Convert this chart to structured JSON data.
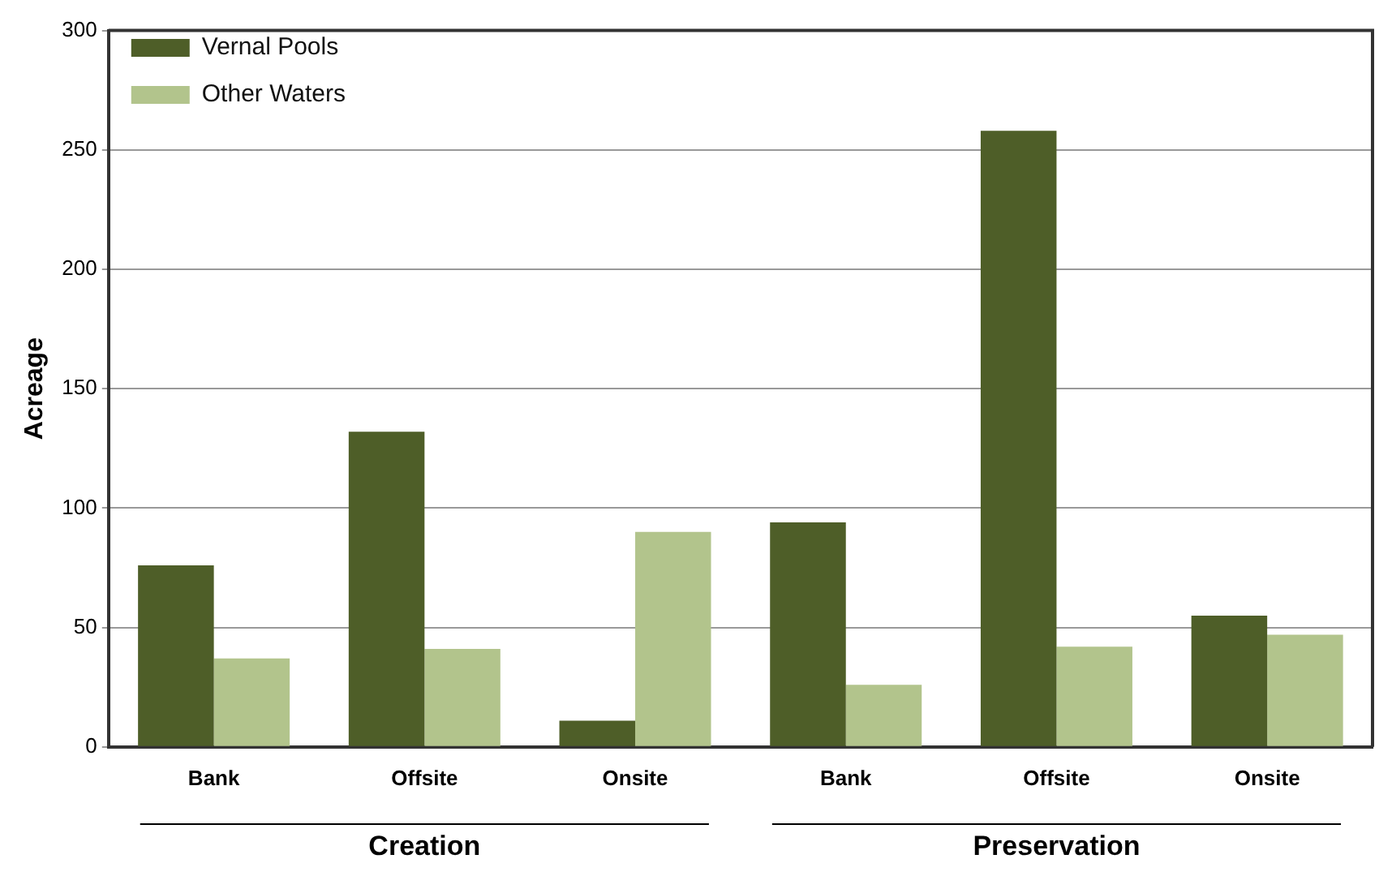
{
  "chart_data": {
    "type": "bar",
    "ylabel": "Acreage",
    "categories": [
      "Bank",
      "Offsite",
      "Onsite",
      "Bank",
      "Offsite",
      "Onsite"
    ],
    "series": [
      {
        "name": "Vernal Pools",
        "color": "#4e5e28",
        "values": [
          76,
          132,
          11,
          94,
          258,
          55
        ]
      },
      {
        "name": "Other Waters",
        "color": "#b2c48c",
        "values": [
          37,
          41,
          90,
          26,
          42,
          47
        ]
      }
    ],
    "ylim": [
      0,
      300
    ],
    "yticks": [
      0,
      50,
      100,
      150,
      200,
      250,
      300
    ],
    "grid": "y",
    "legend": "top left",
    "annotations": [
      "Creation",
      "Preservation"
    ]
  }
}
